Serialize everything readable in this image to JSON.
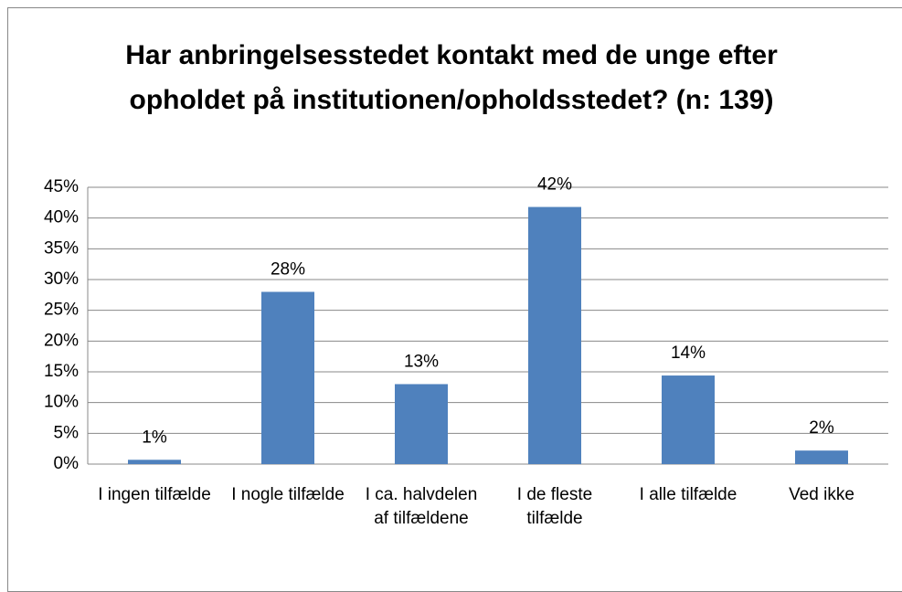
{
  "chart_data": {
    "type": "bar",
    "title": "Har anbringelsesstedet kontakt med de unge efter opholdet på institutionen/opholdsstedet? (n: 139)",
    "categories": [
      "I ingen tilfælde",
      "I nogle tilfælde",
      "I ca. halvdelen af tilfældene",
      "I de fleste tilfælde",
      "I alle tilfælde",
      "Ved ikke"
    ],
    "values": [
      0.7,
      28,
      13,
      41.8,
      14.4,
      2.2
    ],
    "value_labels": [
      "1%",
      "28%",
      "13%",
      "42%",
      "14%",
      "2%"
    ],
    "color": "#4f81bd",
    "ylim": [
      0,
      45
    ],
    "yticks": [
      {
        "value": 0,
        "label": "0%"
      },
      {
        "value": 5,
        "label": "5%"
      },
      {
        "value": 10,
        "label": "10%"
      },
      {
        "value": 15,
        "label": "15%"
      },
      {
        "value": 20,
        "label": "20%"
      },
      {
        "value": 25,
        "label": "25%"
      },
      {
        "value": 30,
        "label": "30%"
      },
      {
        "value": 35,
        "label": "35%"
      },
      {
        "value": 40,
        "label": "40%"
      },
      {
        "value": 45,
        "label": "45%"
      }
    ],
    "grid": true
  }
}
